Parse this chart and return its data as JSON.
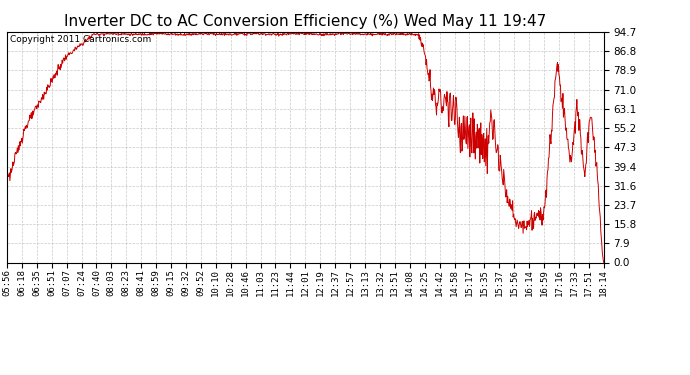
{
  "title": "Inverter DC to AC Conversion Efficiency (%) Wed May 11 19:47",
  "copyright": "Copyright 2011 Cartronics.com",
  "line_color": "#cc0000",
  "background_color": "#ffffff",
  "plot_bg_color": "#ffffff",
  "grid_color": "#bbbbbb",
  "ylim": [
    0.0,
    94.7
  ],
  "yticks": [
    0.0,
    7.9,
    15.8,
    23.7,
    31.6,
    39.4,
    47.3,
    55.2,
    63.1,
    71.0,
    78.9,
    86.8,
    94.7
  ],
  "xtick_labels": [
    "05:56",
    "06:18",
    "06:35",
    "06:51",
    "07:07",
    "07:24",
    "07:40",
    "08:03",
    "08:23",
    "08:41",
    "08:59",
    "09:15",
    "09:32",
    "09:52",
    "10:10",
    "10:28",
    "10:46",
    "11:03",
    "11:23",
    "11:44",
    "12:01",
    "12:19",
    "12:37",
    "12:57",
    "13:13",
    "13:32",
    "13:51",
    "14:08",
    "14:25",
    "14:42",
    "14:58",
    "15:17",
    "15:35",
    "15:37",
    "15:56",
    "16:14",
    "16:59",
    "17:16",
    "17:33",
    "17:51",
    "18:14"
  ],
  "title_fontsize": 11,
  "copyright_fontsize": 6.5,
  "tick_fontsize": 6.5,
  "ytick_fontsize": 7.5
}
